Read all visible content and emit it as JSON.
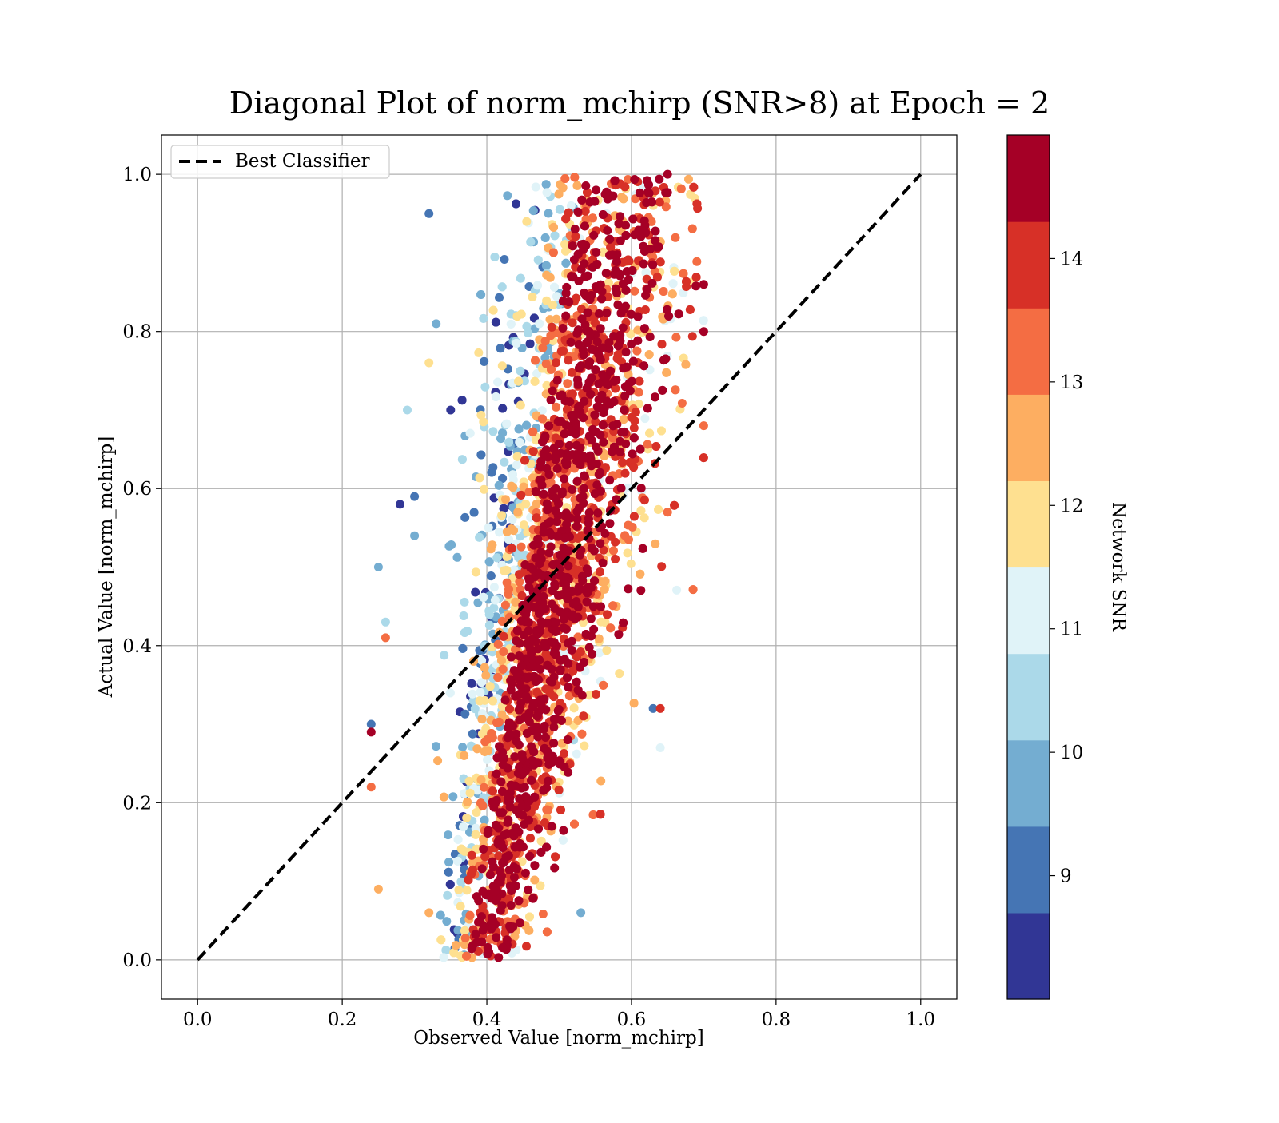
{
  "chart_data": {
    "type": "scatter",
    "title": "Diagonal Plot of norm_mchirp (SNR>8) at Epoch = 2",
    "xlabel": "Observed Value [norm_mchirp]",
    "ylabel": "Actual Value [norm_mchirp]",
    "xlim": [
      -0.05,
      1.05
    ],
    "ylim": [
      -0.05,
      1.05
    ],
    "xticks": [
      "0.0",
      "0.2",
      "0.4",
      "0.6",
      "0.8",
      "1.0"
    ],
    "yticks": [
      "0.0",
      "0.2",
      "0.4",
      "0.6",
      "0.8",
      "1.0"
    ],
    "grid": true,
    "legend": {
      "placement": "top-left",
      "entries": [
        "Best Classifier"
      ]
    },
    "reference_line": {
      "name": "Best Classifier",
      "style": "dashed",
      "color": "#000000",
      "x": [
        0,
        1
      ],
      "y": [
        0,
        1
      ]
    },
    "colorbar": {
      "label": "Network SNR",
      "range": [
        8,
        15
      ],
      "ticks": [
        "9",
        "10",
        "11",
        "12",
        "13",
        "14"
      ],
      "levels": [
        "#313695",
        "#4575b4",
        "#74add1",
        "#abd9e9",
        "#e0f3f8",
        "#fee090",
        "#fdae61",
        "#f46d43",
        "#d73027",
        "#a50026"
      ]
    },
    "scatter": {
      "point_count": 4200,
      "x_range_observed": [
        0.24,
        0.7
      ],
      "y_range_actual": [
        0.0,
        1.0
      ],
      "relation_note": "points cluster in a tilted band: observed ≈ 0.40 at actual 0.1 rising to ≈ 0.55 at actual 0.9"
    },
    "sample_points": [
      {
        "x": 0.32,
        "y": 0.95,
        "snr": 9.2
      },
      {
        "x": 0.33,
        "y": 0.81,
        "snr": 10.1
      },
      {
        "x": 0.32,
        "y": 0.76,
        "snr": 12.1
      },
      {
        "x": 0.29,
        "y": 0.7,
        "snr": 10.6
      },
      {
        "x": 0.35,
        "y": 0.7,
        "snr": 8.5
      },
      {
        "x": 0.28,
        "y": 0.58,
        "snr": 8.5
      },
      {
        "x": 0.3,
        "y": 0.59,
        "snr": 9.3
      },
      {
        "x": 0.3,
        "y": 0.54,
        "snr": 9.4
      },
      {
        "x": 0.25,
        "y": 0.5,
        "snr": 9.7
      },
      {
        "x": 0.26,
        "y": 0.43,
        "snr": 10.3
      },
      {
        "x": 0.26,
        "y": 0.41,
        "snr": 13.2
      },
      {
        "x": 0.24,
        "y": 0.3,
        "snr": 9.1
      },
      {
        "x": 0.24,
        "y": 0.29,
        "snr": 14.8
      },
      {
        "x": 0.24,
        "y": 0.22,
        "snr": 13.1
      },
      {
        "x": 0.25,
        "y": 0.09,
        "snr": 12.8
      },
      {
        "x": 0.32,
        "y": 0.06,
        "snr": 12.5
      },
      {
        "x": 0.53,
        "y": 0.06,
        "snr": 9.4
      },
      {
        "x": 0.52,
        "y": 0.28,
        "snr": 10.4
      },
      {
        "x": 0.63,
        "y": 0.32,
        "snr": 9.2
      },
      {
        "x": 0.64,
        "y": 0.32,
        "snr": 13.8
      },
      {
        "x": 0.64,
        "y": 0.27,
        "snr": 11.1
      },
      {
        "x": 0.7,
        "y": 0.86,
        "snr": 14.5
      },
      {
        "x": 0.7,
        "y": 0.8,
        "snr": 14.9
      },
      {
        "x": 0.7,
        "y": 0.68,
        "snr": 13.1
      },
      {
        "x": 0.65,
        "y": 1.0,
        "snr": 14.9
      },
      {
        "x": 0.65,
        "y": 0.57,
        "snr": 13.0
      }
    ]
  }
}
